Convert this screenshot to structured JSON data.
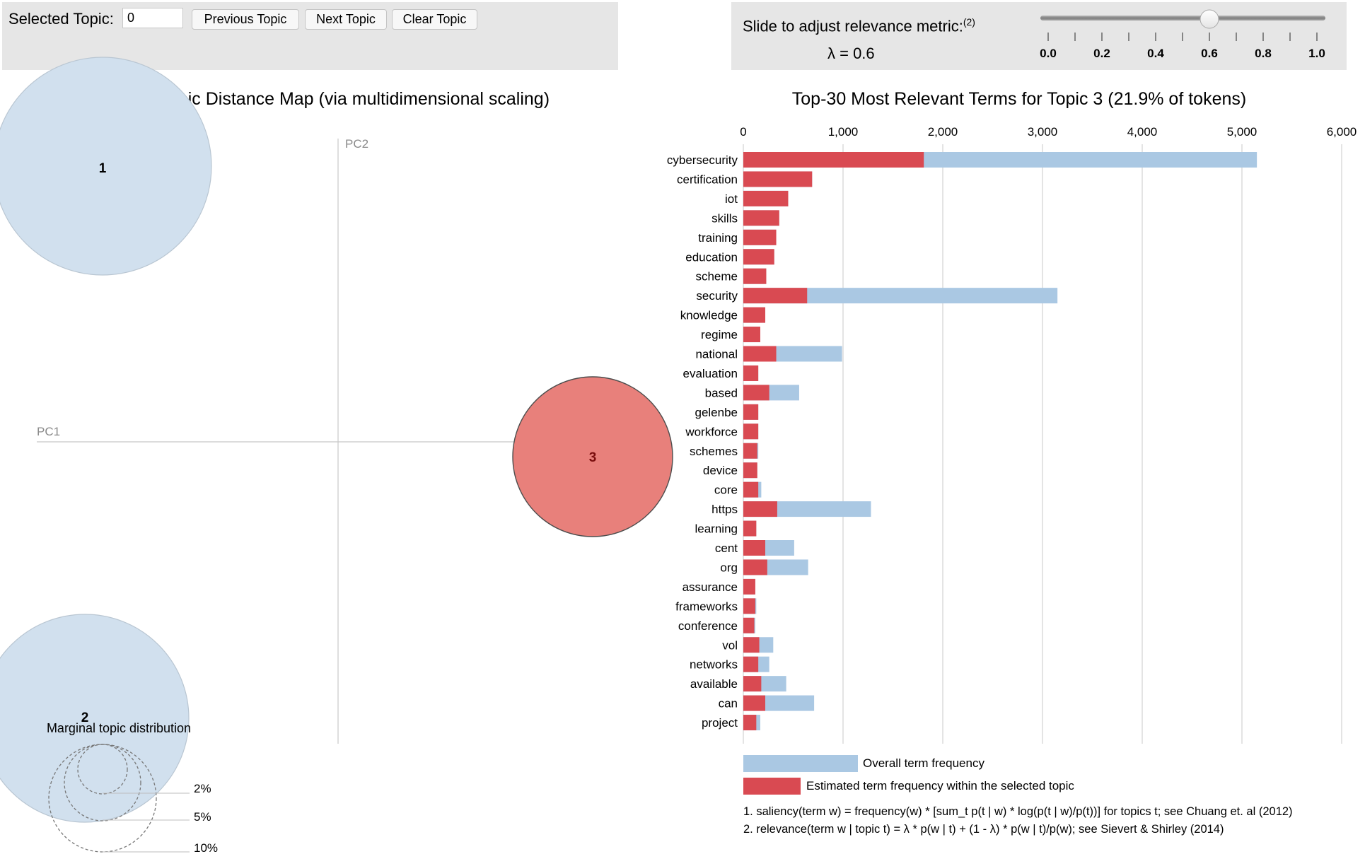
{
  "controls": {
    "selected_topic_label": "Selected Topic:",
    "selected_topic_value": "0",
    "previous_label": "Previous Topic",
    "next_label": "Next Topic",
    "clear_label": "Clear Topic"
  },
  "lambda": {
    "title": "Slide to adjust relevance metric:",
    "title_sup": "(2)",
    "value_text": "λ = 0.6",
    "value": 0.6,
    "ticks": [
      "0.0",
      "0.2",
      "0.4",
      "0.6",
      "0.8",
      "1.0"
    ]
  },
  "left": {
    "title": "Intertopic Distance Map (via multidimensional scaling)",
    "pc1": "PC1",
    "pc2": "PC2",
    "topics": [
      {
        "label": "1",
        "selected": false
      },
      {
        "label": "2",
        "selected": false
      },
      {
        "label": "3",
        "selected": true
      }
    ],
    "marginal_title": "Marginal topic distribution",
    "marginal_labels": [
      "2%",
      "5%",
      "10%"
    ]
  },
  "colors": {
    "overall": "#aac8e3",
    "estimated": "#d94a52",
    "topic_bubble": "#d1e0ee",
    "selected_bubble": "#e8807b",
    "panel": "#e6e6e6"
  },
  "chart_data": {
    "type": "bar",
    "title": "Top-30 Most Relevant Terms for Topic 3 (21.9% of tokens)",
    "xlim": [
      0,
      6000
    ],
    "xticks": [
      "0",
      "1,000",
      "2,000",
      "3,000",
      "4,000",
      "5,000",
      "6,000"
    ],
    "grid": true,
    "categories": [
      "cybersecurity",
      "certification",
      "iot",
      "skills",
      "training",
      "education",
      "scheme",
      "security",
      "knowledge",
      "regime",
      "national",
      "evaluation",
      "based",
      "gelenbe",
      "workforce",
      "schemes",
      "device",
      "core",
      "https",
      "learning",
      "cent",
      "org",
      "assurance",
      "frameworks",
      "conference",
      "vol",
      "networks",
      "available",
      "can",
      "project"
    ],
    "series": [
      {
        "name": "Overall term frequency",
        "values": [
          5150,
          690,
          450,
          360,
          330,
          310,
          230,
          3150,
          220,
          170,
          990,
          150,
          560,
          150,
          150,
          150,
          140,
          180,
          1280,
          130,
          510,
          650,
          120,
          130,
          120,
          300,
          260,
          430,
          710,
          170
        ]
      },
      {
        "name": "Estimated term frequency within the selected topic",
        "values": [
          1810,
          690,
          450,
          360,
          330,
          310,
          230,
          640,
          220,
          170,
          330,
          150,
          260,
          150,
          150,
          140,
          140,
          150,
          340,
          130,
          220,
          240,
          120,
          120,
          110,
          160,
          150,
          180,
          220,
          130
        ]
      }
    ],
    "legend": "bottom"
  },
  "footnotes": [
    "1. saliency(term w) = frequency(w) * [sum_t p(t | w) * log(p(t | w)/p(t))] for topics t; see Chuang et. al (2012)",
    "2. relevance(term w | topic t) = λ * p(w | t) + (1 - λ) * p(w | t)/p(w); see Sievert & Shirley (2014)"
  ]
}
